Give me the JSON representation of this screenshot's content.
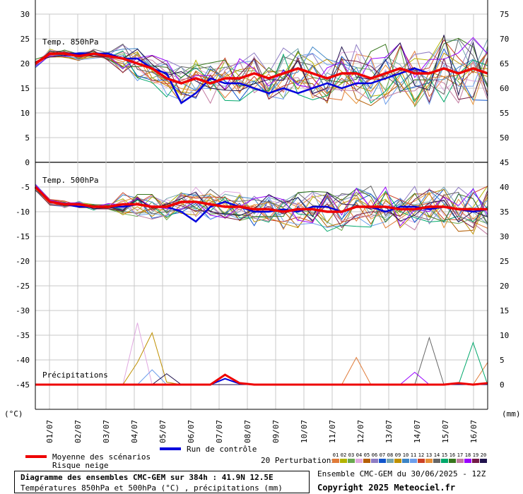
{
  "title": "Diagramme des ensembles CMC-GEM sur 384h : 41.9N 12.5E",
  "subtitle": "Températures 850hPa et 500hPa (°C) , précipitations (mm)",
  "run_info": "Ensemble CMC-GEM du 30/06/2025 - 12Z",
  "copyright": "Copyright 2025 Meteociel.fr",
  "legend": {
    "mean": "Moyenne des scénarios",
    "snow": "Risque neige",
    "control": "Run de contrôle",
    "perturbations": "20 Perturbations",
    "perturbation_ids": [
      "01",
      "02",
      "03",
      "04",
      "05",
      "06",
      "07",
      "08",
      "09",
      "10",
      "11",
      "12",
      "13",
      "14",
      "15",
      "16",
      "17",
      "18",
      "19",
      "20"
    ],
    "perturbation_colors": [
      "#e07b39",
      "#b3b300",
      "#6aa84f",
      "#e0a8e0",
      "#b45f06",
      "#8e7cc3",
      "#1155cc",
      "#76a5af",
      "#bf9000",
      "#3d85c6",
      "#6d9eeb",
      "#cc4125",
      "#e69138",
      "#666666",
      "#00a86b",
      "#38761d",
      "#c27ba0",
      "#9900ff",
      "#741b47",
      "#20124d"
    ],
    "mean_color": "#ee0000",
    "control_color": "#0000dd"
  },
  "axis_left_unit": "(°C)",
  "axis_right_unit": "(mm)",
  "panel_labels": {
    "t850": "Temp. 850hPa",
    "t500": "Temp. 500hPa",
    "precip": "Précipitations"
  },
  "chart_data": {
    "type": "line",
    "x_labels": [
      "01/07",
      "02/07",
      "03/07",
      "04/07",
      "05/07",
      "06/07",
      "07/07",
      "08/07",
      "09/07",
      "10/07",
      "11/07",
      "12/07",
      "13/07",
      "14/07",
      "15/07",
      "16/07"
    ],
    "left_ticks": [
      30,
      25,
      20,
      15,
      10,
      5,
      0,
      -5,
      -10,
      -15,
      -20,
      -25,
      -30,
      -35,
      -40,
      -45
    ],
    "right_ticks": [
      75,
      70,
      65,
      60,
      55,
      50,
      45,
      40,
      35,
      30,
      25,
      20,
      15,
      10,
      5,
      0
    ],
    "t850": {
      "mean": [
        20,
        22,
        22,
        21.5,
        22,
        21.5,
        21,
        20,
        19,
        17,
        16,
        17,
        16,
        17,
        17,
        18,
        17,
        18,
        19,
        18,
        17,
        18,
        18,
        17,
        18,
        19,
        18,
        18,
        19,
        18,
        19,
        18
      ],
      "control": [
        20,
        22,
        22,
        22,
        22,
        22,
        21,
        21,
        19,
        18,
        12,
        14,
        17,
        16,
        16,
        15,
        14,
        15,
        14,
        15,
        16,
        15,
        16,
        16,
        17,
        18,
        19,
        18,
        19,
        18,
        19,
        18
      ]
    },
    "t500": {
      "mean": [
        -5,
        -8,
        -8.5,
        -8.5,
        -9,
        -9,
        -8.5,
        -8.5,
        -9,
        -9,
        -8,
        -8,
        -8.5,
        -9,
        -9,
        -9.5,
        -9.5,
        -10,
        -9.5,
        -9.5,
        -10,
        -10,
        -9,
        -9,
        -9,
        -9.5,
        -9.5,
        -9,
        -9,
        -9.5,
        -9.5,
        -9.5
      ],
      "control": [
        -5,
        -8,
        -8.5,
        -9,
        -9,
        -9,
        -9,
        -8.5,
        -9,
        -9,
        -10,
        -12,
        -9,
        -8,
        -9,
        -10,
        -10,
        -9.5,
        -10,
        -9,
        -9,
        -10,
        -9,
        -9,
        -10,
        -9,
        -9,
        -9.5,
        -9,
        -9.5,
        -10,
        -9.5
      ]
    },
    "precip_mean": [
      0,
      0,
      0,
      0,
      0,
      0,
      0,
      0,
      0,
      0,
      0,
      0,
      0,
      2,
      0.3,
      0,
      0,
      0,
      0,
      0,
      0,
      0,
      0,
      0,
      0,
      0,
      0,
      0,
      0,
      0.3,
      0,
      0.3
    ]
  }
}
